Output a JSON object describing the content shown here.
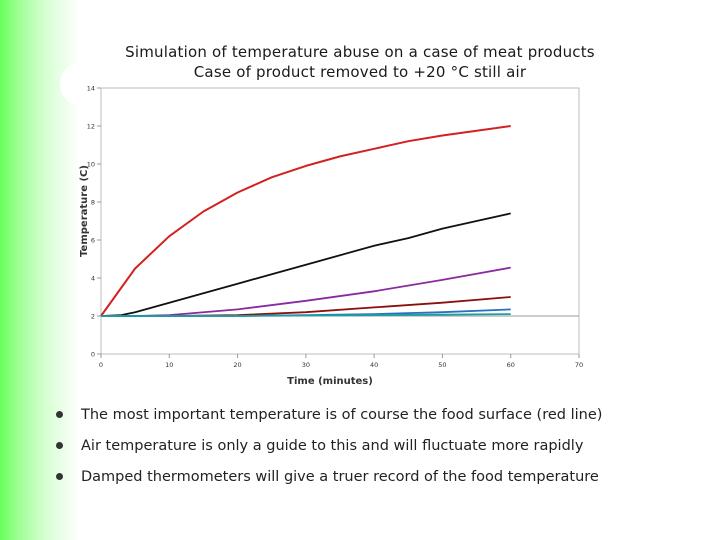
{
  "title": {
    "line1": "Simulation of temperature abuse on a case of meat products",
    "line2": "Case of product removed to +20 °C still air"
  },
  "bullets": [
    "The most important temperature is of course the food surface (red line)",
    "Air temperature is only a guide to this and will fluctuate more rapidly",
    "Damped thermometers will give a truer record of the food temperature"
  ],
  "chart_data": {
    "type": "line",
    "xlabel": "Time (minutes)",
    "ylabel": "Temperature (C)",
    "xlim": [
      0,
      70
    ],
    "ylim": [
      0,
      14
    ],
    "xticks": [
      0,
      10,
      20,
      30,
      40,
      50,
      60,
      70
    ],
    "yticks": [
      0,
      2,
      4,
      6,
      8,
      10,
      12,
      14
    ],
    "grid": false,
    "series": [
      {
        "color": "#d42020",
        "x": [
          0,
          5,
          10,
          15,
          20,
          25,
          30,
          35,
          40,
          45,
          50,
          55,
          60
        ],
        "y": [
          2,
          4.5,
          6.2,
          7.5,
          8.5,
          9.3,
          9.9,
          10.4,
          10.8,
          11.2,
          11.5,
          11.75,
          12.0
        ]
      },
      {
        "color": "#111111",
        "x": [
          0,
          3,
          5,
          10,
          15,
          20,
          25,
          30,
          35,
          40,
          45,
          50,
          55,
          60
        ],
        "y": [
          2,
          2.05,
          2.2,
          2.7,
          3.2,
          3.7,
          4.2,
          4.7,
          5.2,
          5.7,
          6.1,
          6.6,
          7.0,
          7.4
        ]
      },
      {
        "color": "#8a2aa0",
        "x": [
          0,
          5,
          10,
          20,
          30,
          40,
          50,
          60
        ],
        "y": [
          2,
          2.0,
          2.05,
          2.35,
          2.8,
          3.3,
          3.9,
          4.55
        ]
      },
      {
        "color": "#8b1010",
        "x": [
          0,
          10,
          20,
          30,
          40,
          50,
          60
        ],
        "y": [
          2,
          2.0,
          2.05,
          2.2,
          2.45,
          2.7,
          3.0
        ]
      },
      {
        "color": "#2a6fc0",
        "x": [
          0,
          10,
          20,
          30,
          40,
          50,
          60
        ],
        "y": [
          2,
          2.0,
          2.0,
          2.05,
          2.1,
          2.2,
          2.35
        ]
      },
      {
        "color": "#1aa0a0",
        "x": [
          0,
          20,
          40,
          60
        ],
        "y": [
          2,
          2.0,
          2.05,
          2.1
        ]
      }
    ]
  }
}
